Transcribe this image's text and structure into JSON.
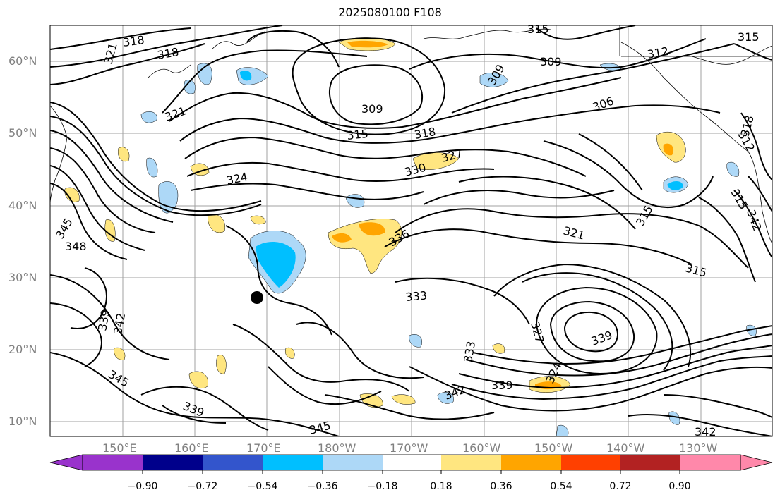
{
  "title": "2025080100 F108",
  "latitude_labels": [
    "60°N",
    "50°N",
    "40°N",
    "30°N",
    "20°N",
    "10°N"
  ],
  "longitude_labels": [
    "150°E",
    "160°E",
    "170°E",
    "180°W",
    "170°W",
    "160°W",
    "150°W",
    "140°W",
    "130°W"
  ],
  "contour_labels": [
    "318",
    "318",
    "321",
    "321",
    "315",
    "315",
    "312",
    "309",
    "309",
    "306",
    "315",
    "318",
    "324",
    "330",
    "327",
    "336",
    "348",
    "345",
    "339",
    "342",
    "345",
    "339",
    "342",
    "345",
    "333",
    "333",
    "327",
    "324",
    "342",
    "339",
    "339",
    "321",
    "315",
    "315",
    "318",
    "312",
    "342",
    "309",
    "315"
  ],
  "colorbar": {
    "colors": [
      "#9933cc",
      "#00008b",
      "#3355cc",
      "#00bfff",
      "#add8f7",
      "#ffffff",
      "#ffe680",
      "#ffa500",
      "#ff4000",
      "#b22222",
      "#ff88aa"
    ],
    "tick_labels": [
      "−0.90",
      "−0.72",
      "−0.54",
      "−0.36",
      "−0.18",
      "0.18",
      "0.36",
      "0.54",
      "0.72",
      "0.90"
    ]
  },
  "marker": "typhoon-position"
}
